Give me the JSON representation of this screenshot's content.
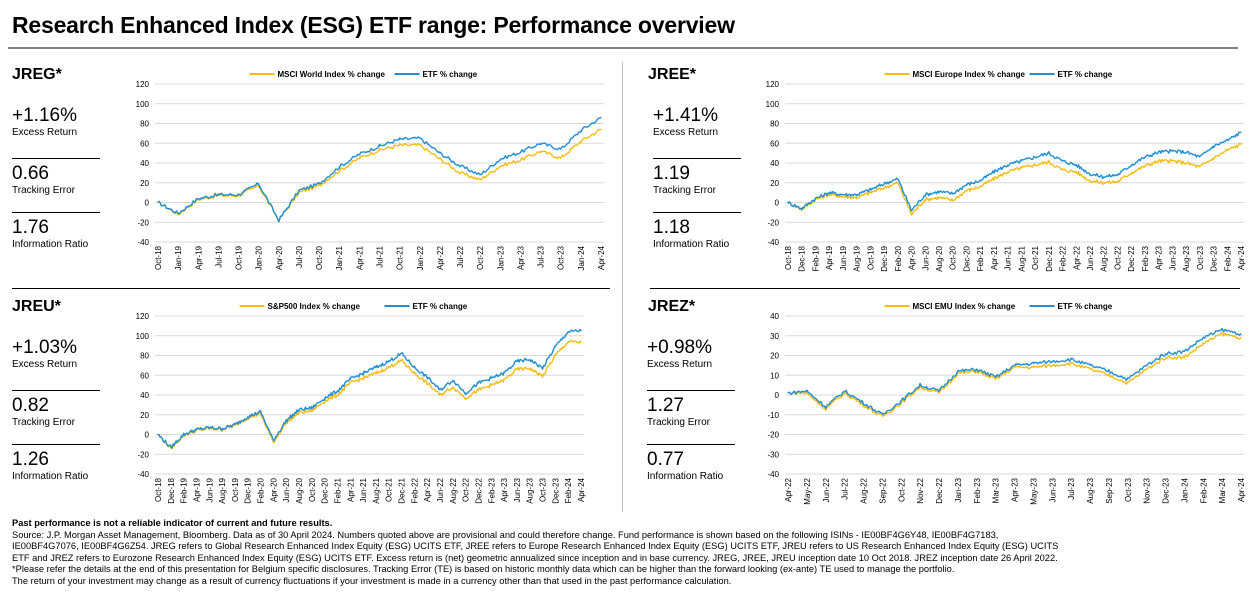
{
  "title": "Research Enhanced Index (ESG) ETF range: Performance overview",
  "colors": {
    "etf": "#1f8fd6",
    "index": "#f5bd12",
    "grid": "#d9d9d9"
  },
  "panels": [
    {
      "ticker": "JREG*",
      "metrics": [
        {
          "value": "+1.16%",
          "label": "Excess Return"
        },
        {
          "value": "0.66",
          "label": "Tracking Error"
        },
        {
          "value": "1.76",
          "label": "Information Ratio"
        }
      ]
    },
    {
      "ticker": "JREE*",
      "metrics": [
        {
          "value": "+1.41%",
          "label": "Excess Return"
        },
        {
          "value": "1.19",
          "label": "Tracking Error"
        },
        {
          "value": "1.18",
          "label": "Information Ratio"
        }
      ]
    },
    {
      "ticker": "JREU*",
      "metrics": [
        {
          "value": "+1.03%",
          "label": "Excess Return"
        },
        {
          "value": "0.82",
          "label": "Tracking Error"
        },
        {
          "value": "1.26",
          "label": "Information Ratio"
        }
      ]
    },
    {
      "ticker": "JREZ*",
      "metrics": [
        {
          "value": "+0.98%",
          "label": "Excess Return"
        },
        {
          "value": "1.27",
          "label": "Tracking Error"
        },
        {
          "value": "0.77",
          "label": "Information Ratio"
        }
      ]
    }
  ],
  "chart_data": [
    {
      "type": "line",
      "title": "JREG*",
      "xlabel": "",
      "ylabel": "",
      "ylim": [
        -40,
        120
      ],
      "yticks": [
        120,
        100,
        80,
        60,
        40,
        20,
        0,
        -20,
        -40
      ],
      "grid": true,
      "legend": "top-center",
      "x": [
        "Oct-18",
        "Jan-19",
        "Apr-19",
        "Jul-19",
        "Oct-19",
        "Jan-20",
        "Apr-20",
        "Jul-20",
        "Oct-20",
        "Jan-21",
        "Apr-21",
        "Jul-21",
        "Oct-21",
        "Jan-22",
        "Apr-22",
        "Jul-22",
        "Oct-22",
        "Jan-23",
        "Apr-23",
        "Jul-23",
        "Oct-23",
        "Jan-24",
        "Apr-24"
      ],
      "series": [
        {
          "name": "MSCI World Index % change",
          "color": "#f5bd12",
          "values": [
            0,
            -12,
            3,
            7,
            7,
            17,
            -18,
            10,
            17,
            32,
            45,
            53,
            58,
            58,
            44,
            30,
            23,
            37,
            43,
            52,
            45,
            62,
            74
          ]
        },
        {
          "name": "ETF % change",
          "color": "#1f8fd6",
          "values": [
            0,
            -11,
            4,
            8,
            8,
            19,
            -18,
            12,
            19,
            36,
            49,
            57,
            64,
            65,
            50,
            37,
            28,
            44,
            51,
            60,
            54,
            73,
            86
          ]
        }
      ]
    },
    {
      "type": "line",
      "title": "JREE*",
      "xlabel": "",
      "ylabel": "",
      "ylim": [
        -40,
        120
      ],
      "yticks": [
        120,
        100,
        80,
        60,
        40,
        20,
        0,
        -20,
        -40
      ],
      "grid": true,
      "legend": "top-center",
      "x": [
        "Oct-18",
        "Dec-18",
        "Feb-19",
        "Apr-19",
        "Jun-19",
        "Aug-19",
        "Oct-19",
        "Dec-19",
        "Feb-20",
        "Apr-20",
        "Jun-20",
        "Aug-20",
        "Oct-20",
        "Dec-20",
        "Feb-21",
        "Apr-21",
        "Jun-21",
        "Aug-21",
        "Oct-21",
        "Dec-21",
        "Feb-22",
        "Apr-22",
        "Jun-22",
        "Aug-22",
        "Oct-22",
        "Dec-22",
        "Feb-23",
        "Apr-23",
        "Jun-23",
        "Aug-23",
        "Oct-23",
        "Dec-23",
        "Feb-24",
        "Apr-24"
      ],
      "series": [
        {
          "name": "MSCI Europe Index % change",
          "color": "#f5bd12",
          "values": [
            0,
            -7,
            3,
            8,
            6,
            5,
            10,
            15,
            20,
            -12,
            3,
            5,
            2,
            12,
            16,
            24,
            31,
            35,
            38,
            41,
            33,
            31,
            22,
            20,
            21,
            30,
            37,
            42,
            42,
            40,
            36,
            45,
            53,
            59
          ]
        },
        {
          "name": "ETF % change",
          "color": "#1f8fd6",
          "values": [
            0,
            -6,
            4,
            10,
            8,
            8,
            13,
            19,
            24,
            -8,
            8,
            11,
            9,
            18,
            22,
            31,
            38,
            42,
            46,
            50,
            42,
            38,
            29,
            26,
            28,
            38,
            46,
            51,
            52,
            51,
            46,
            57,
            63,
            71
          ]
        }
      ]
    },
    {
      "type": "line",
      "title": "JREU*",
      "xlabel": "",
      "ylabel": "",
      "ylim": [
        -40,
        120
      ],
      "yticks": [
        120,
        100,
        80,
        60,
        40,
        20,
        0,
        -20,
        -40
      ],
      "grid": true,
      "legend": "top-center",
      "x": [
        "Oct-18",
        "Dec-18",
        "Feb-19",
        "Apr-19",
        "Jun-19",
        "Aug-19",
        "Oct-19",
        "Dec-19",
        "Feb-20",
        "Apr-20",
        "Jun-20",
        "Aug-20",
        "Oct-20",
        "Dec-20",
        "Feb-21",
        "Apr-21",
        "Jun-21",
        "Aug-21",
        "Oct-21",
        "Dec-21",
        "Feb-22",
        "Apr-22",
        "Jun-22",
        "Aug-22",
        "Oct-22",
        "Dec-22",
        "Feb-23",
        "Apr-23",
        "Jun-23",
        "Aug-23",
        "Oct-23",
        "Dec-23",
        "Feb-24",
        "Apr-24"
      ],
      "series": [
        {
          "name": "S&P500 Index % change",
          "color": "#f5bd12",
          "values": [
            0,
            -14,
            -1,
            4,
            6,
            5,
            9,
            17,
            21,
            -8,
            12,
            22,
            24,
            34,
            40,
            52,
            57,
            62,
            68,
            75,
            62,
            52,
            40,
            48,
            37,
            45,
            50,
            55,
            66,
            67,
            59,
            80,
            94,
            93
          ]
        },
        {
          "name": "ETF % change",
          "color": "#1f8fd6",
          "values": [
            0,
            -13,
            0,
            5,
            7,
            6,
            10,
            18,
            23,
            -6,
            14,
            25,
            27,
            37,
            44,
            56,
            62,
            68,
            74,
            82,
            68,
            58,
            45,
            55,
            42,
            52,
            57,
            62,
            74,
            76,
            67,
            89,
            104,
            105
          ]
        }
      ]
    },
    {
      "type": "line",
      "title": "JREZ*",
      "xlabel": "",
      "ylabel": "",
      "ylim": [
        -40,
        40
      ],
      "yticks": [
        40,
        30,
        20,
        10,
        0,
        -10,
        -20,
        -30,
        -40
      ],
      "grid": true,
      "legend": "top-center",
      "x": [
        "Apr-22",
        "May-22",
        "Jun-22",
        "Jul-22",
        "Aug-22",
        "Sep-22",
        "Oct-22",
        "Nov-22",
        "Dec-22",
        "Jan-23",
        "Feb-23",
        "Mar-23",
        "Apr-23",
        "May-23",
        "Jun-23",
        "Jul-23",
        "Aug-23",
        "Sep-23",
        "Oct-23",
        "Nov-23",
        "Dec-23",
        "Jan-24",
        "Feb-24",
        "Mar-24",
        "Apr-24"
      ],
      "series": [
        {
          "name": "MSCI EMU Index % change",
          "color": "#f5bd12",
          "values": [
            1,
            1,
            -7,
            1,
            -5,
            -11,
            -4,
            4,
            1,
            11,
            12,
            8,
            14,
            14,
            15,
            16,
            13,
            10,
            6,
            13,
            19,
            19,
            26,
            31,
            29
          ]
        },
        {
          "name": "ETF % change",
          "color": "#1f8fd6",
          "values": [
            1,
            2,
            -6,
            2,
            -4,
            -10,
            -3,
            5,
            2,
            12,
            13,
            9,
            15,
            16,
            17,
            18,
            15,
            12,
            8,
            15,
            21,
            22,
            29,
            33,
            31
          ]
        }
      ]
    }
  ],
  "footer": {
    "bold_line": "Past performance is not a reliable indicator of current and future results.",
    "lines": [
      "Source: J.P. Morgan Asset Management, Bloomberg. Data as of 30 April 2024. Numbers quoted above are provisional and could therefore change. Fund performance is shown based on the following ISINs - IE00BF4G6Y48, IE00BF4G7183,",
      "IE00BF4G7076, IE00BF4G6Z54. JREG refers to Global Research Enhanced Index Equity (ESG) UCITS ETF, JREE refers to Europe Research Enhanced Index Equity (ESG) UCITS ETF, JREU refers to US Research Enhanced Index Equity (ESG) UCITS",
      "ETF and JREZ refers to Eurozone Research Enhanced Index Equity (ESG) UCITS ETF. Excess return is (net) geometric annualized since inception and in base currency. JREG, JREE, JREU inception date 10 Oct 2018. JREZ inception date 26 April 2022.",
      "*Please refer the details at the end of this presentation for Belgium specific disclosures. Tracking Error (TE) is based on historic monthly data which can be higher than the forward looking (ex-ante) TE used to manage the portfolio.",
      "The return of your investment may change as a result of currency fluctuations if your investment is made in a currency other than that used in the past performance calculation."
    ]
  }
}
